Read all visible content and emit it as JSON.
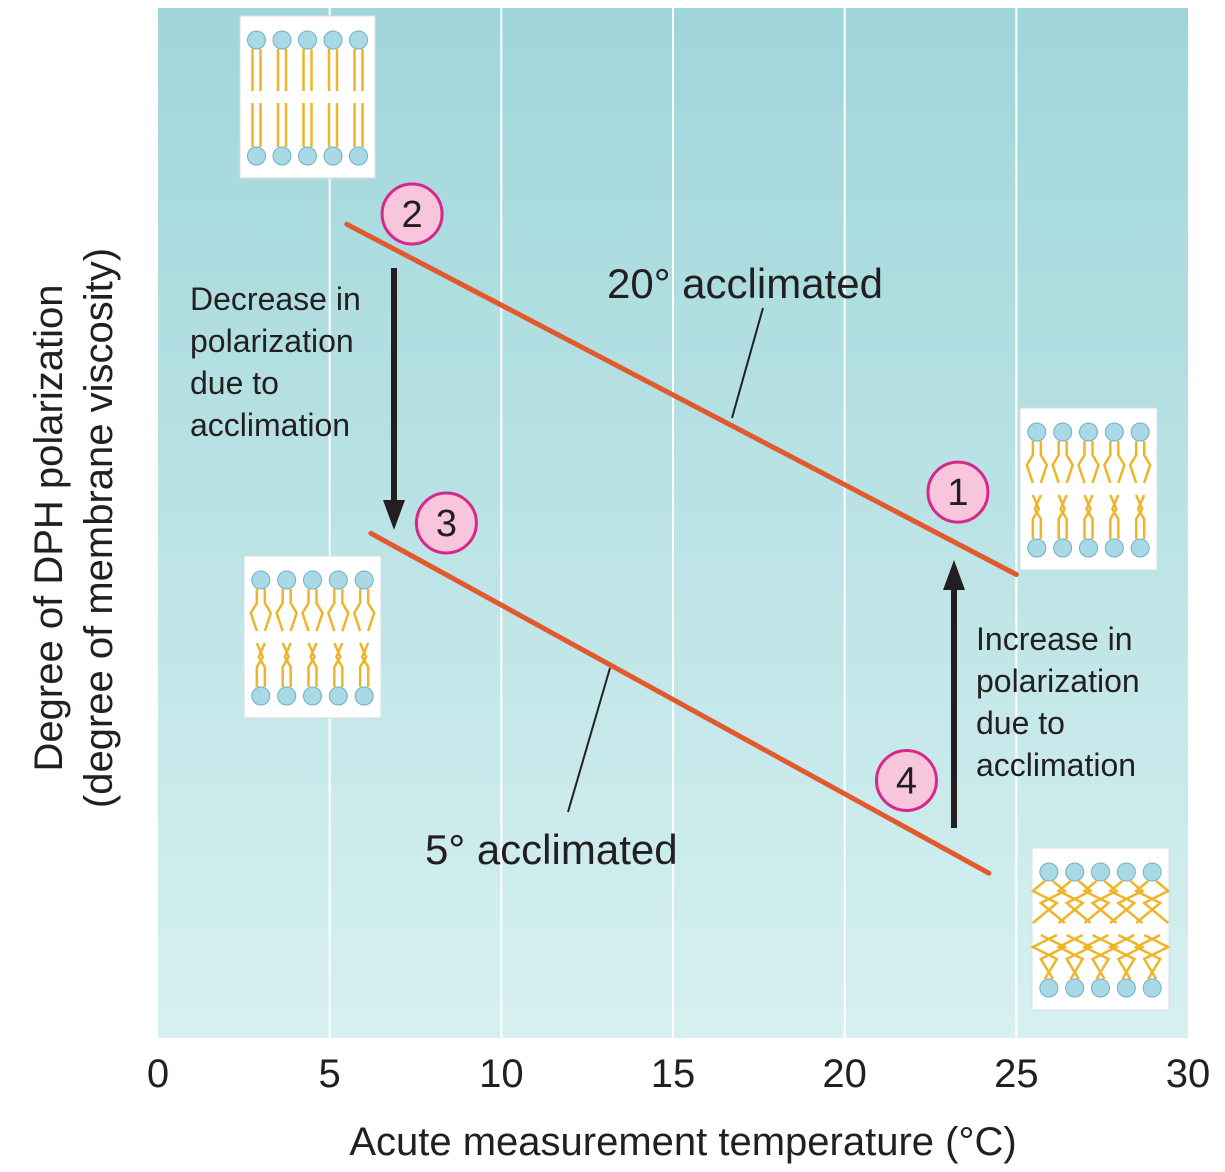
{
  "chart_data": {
    "type": "line",
    "xlabel": "Acute measurement temperature (°C)",
    "ylabel_line1": "Degree of DPH polarization",
    "ylabel_line2": "(degree of membrane viscosity)",
    "xlim": [
      0,
      30
    ],
    "x_ticks": [
      "0",
      "5",
      "10",
      "15",
      "20",
      "25",
      "30"
    ],
    "y_ticks_shown": false,
    "grid": "vertical",
    "colors": {
      "plot_bg_top": "#9fd6da",
      "plot_bg_bottom": "#d7f0f1",
      "line": "#e05a2e",
      "grid": "#ffffff",
      "marker_fill": "#f7c6dc",
      "marker_stroke": "#d8268a",
      "arrow": "#231f20",
      "lipid_head": "#a9d9e6",
      "lipid_tail": "#f0b429"
    },
    "series": [
      {
        "name": "20° acclimated",
        "x": [
          5.5,
          25
        ],
        "y": [
          0.79,
          0.45
        ]
      },
      {
        "name": "5° acclimated",
        "x": [
          6.2,
          24.2
        ],
        "y": [
          0.49,
          0.16
        ]
      }
    ],
    "markers": [
      {
        "label": "1",
        "x": 23.3,
        "y": 0.53
      },
      {
        "label": "2",
        "x": 7.4,
        "y": 0.8
      },
      {
        "label": "3",
        "x": 8.4,
        "y": 0.5
      },
      {
        "label": "4",
        "x": 21.8,
        "y": 0.25
      }
    ],
    "annotations": {
      "left_arrow_lines": [
        "Decrease in",
        "polarization",
        "due to",
        "acclimation"
      ],
      "right_arrow_lines": [
        "Increase in",
        "polarization",
        "due to",
        "acclimation"
      ]
    },
    "membrane_icons": [
      {
        "name": "ordered-membrane",
        "state": "straight tails"
      },
      {
        "name": "fluid-membrane",
        "state": "kinked tails"
      },
      {
        "name": "partly-fluid-membrane",
        "state": "kinked tails"
      },
      {
        "name": "very-fluid-membrane",
        "state": "highly disordered tails"
      }
    ]
  }
}
